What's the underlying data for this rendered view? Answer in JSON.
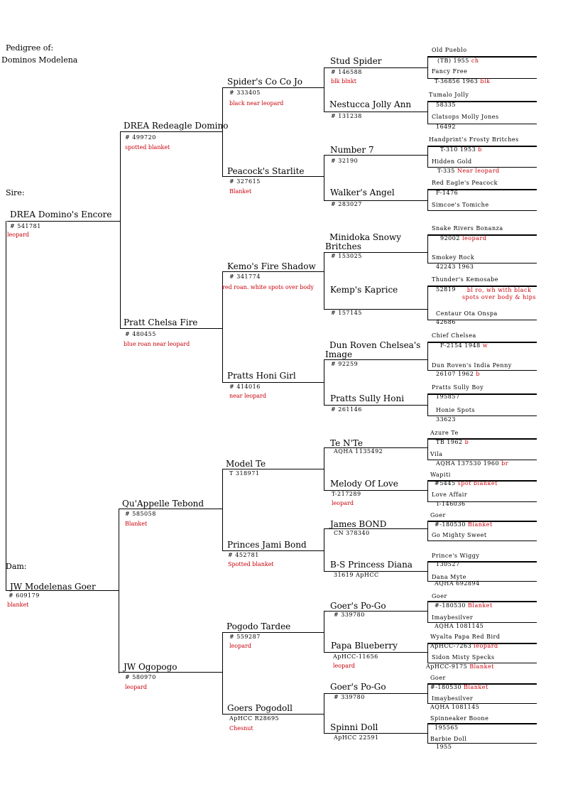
{
  "header": {
    "title_line1": "Pedigree of:",
    "title_line2": "Dominos Modelena"
  },
  "labels": {
    "sire": "Sire:",
    "dam": "Dam:"
  },
  "gen1": {
    "sire": {
      "name": "DREA Domino's Encore",
      "reg": "# 541781",
      "color": "leopard"
    },
    "dam": {
      "name": "JW Modelenas Goer",
      "reg": "# 609179",
      "color": "blanket"
    }
  },
  "gen2": [
    {
      "name": "DREA Redeagle Domino",
      "reg": "# 499720",
      "color": "spotted blanket"
    },
    {
      "name": "Pratt Chelsa Fire",
      "reg": "# 480455",
      "color": "blue roan near leopard"
    },
    {
      "name": "Qu'Appelle Tebond",
      "reg": "# 585058",
      "color": "Blanket"
    },
    {
      "name": "JW Ogopogo",
      "reg": "# 580970",
      "color": "leopard"
    }
  ],
  "gen3": [
    {
      "name": "Spider's Co Co Jo",
      "reg": "# 333405",
      "color": "black near leopard"
    },
    {
      "name": "Peacock's Starlite",
      "reg": "# 327615",
      "color": "Blanket"
    },
    {
      "name": "Kemo's Fire Shadow",
      "reg": "# 341774",
      "color": "red roan. white spots over body"
    },
    {
      "name": "Pratts Honi Girl",
      "reg": "# 414016",
      "color": "near leopard"
    },
    {
      "name": "Model Te",
      "reg": "T 318971",
      "color": ""
    },
    {
      "name": "Princes Jami Bond",
      "reg": "# 452781",
      "color": "Spotted blanket"
    },
    {
      "name": "Pogodo Tardee",
      "reg": "# 559287",
      "color": "leopard"
    },
    {
      "name": "Goers Pogodoll",
      "reg": "ApHCC R28695",
      "color": "Chesnut"
    }
  ],
  "gen4": [
    {
      "name": "Stud Spider",
      "reg": "# 146588",
      "color": "blk blnkt"
    },
    {
      "name": "Nestucca Jolly Ann",
      "reg": "# 131238",
      "color": ""
    },
    {
      "name": "Number 7",
      "reg": "# 32190",
      "color": ""
    },
    {
      "name": "Walker's Angel",
      "reg": "# 283027",
      "color": ""
    },
    {
      "name": "Minidoka Snowy Britches",
      "reg": "# 153025",
      "color": ""
    },
    {
      "name": "Kemp's Kaprice",
      "reg": "# 157145",
      "color": ""
    },
    {
      "name": "Dun Roven Chelsea's Image",
      "reg": "# 92259",
      "color": ""
    },
    {
      "name": "Pratts Sully Honi",
      "reg": "# 261146",
      "color": ""
    },
    {
      "name": "Te N'Te",
      "reg": "AQHA 1135492",
      "color": ""
    },
    {
      "name": "Melody Of Love",
      "reg": "T-217289",
      "color": "leopard"
    },
    {
      "name": "James BOND",
      "reg": "CN 378340",
      "color": ""
    },
    {
      "name": "B-S Princess Diana",
      "reg": "31619 ApHCC",
      "color": ""
    },
    {
      "name": "Goer's Po-Go",
      "reg": "# 339780",
      "color": ""
    },
    {
      "name": "Papa Blueberry",
      "reg": "ApHCC-11656",
      "color": "leopard"
    },
    {
      "name": "Goer's Po-Go",
      "reg": "# 339780",
      "color": ""
    },
    {
      "name": "Spinni Doll",
      "reg": "ApHCC 22591",
      "color": ""
    }
  ],
  "gen5": [
    {
      "name": "Old Pueblo",
      "reg": "(TB) 1955",
      "color": "ch"
    },
    {
      "name": "Fancy Free",
      "reg": "T-36856 1963",
      "color": "blk"
    },
    {
      "name": "Tumalo Jolly",
      "reg": "58335",
      "color": ""
    },
    {
      "name": "Clatsops Molly Jones",
      "reg": "16492",
      "color": ""
    },
    {
      "name": "Handprint's Frosty Britches",
      "reg": "T-310 1953",
      "color": "b"
    },
    {
      "name": "Hidden Gold",
      "reg": "T-335",
      "color": "Near leopard"
    },
    {
      "name": "Red Eagle's Peacock",
      "reg": "F-1476",
      "color": ""
    },
    {
      "name": "Simcoe's Tomiche",
      "reg": "",
      "color": ""
    },
    {
      "name": "Snake Rivers Bonanza",
      "reg": "92002",
      "color": "leopard"
    },
    {
      "name": "Smokey Rock",
      "reg": "42243 1963",
      "color": ""
    },
    {
      "name": "Thunder's Kemosabe",
      "reg": "52819",
      "color": "bl ro, wh with black spots over body & hips"
    },
    {
      "name": "Centaur Ota Onspa",
      "reg": "42686",
      "color": ""
    },
    {
      "name": "Chief Chelsea",
      "reg": "F-2154 1948",
      "color": "w"
    },
    {
      "name": "Dun Roven's India Penny",
      "reg": "26107 1962",
      "color": "b"
    },
    {
      "name": "Pratts Sully Boy",
      "reg": "195857",
      "color": ""
    },
    {
      "name": "Honie Spots",
      "reg": "33623",
      "color": ""
    },
    {
      "name": "Azure Te",
      "reg": "TB 1962",
      "color": "b"
    },
    {
      "name": "Vila",
      "reg": "AQHA 137530 1960",
      "color": "br"
    },
    {
      "name": "Wapiti",
      "reg": "#5445",
      "color": "spot blanket"
    },
    {
      "name": "Love Affair",
      "reg": "T-146036",
      "color": ""
    },
    {
      "name": "Goer",
      "reg": "#-180530",
      "color": "Blanket"
    },
    {
      "name": "Go Mighty Sweet",
      "reg": "",
      "color": ""
    },
    {
      "name": "Prince's Wiggy",
      "reg": "130527",
      "color": ""
    },
    {
      "name": "Dana Myte",
      "reg": "AQHA 692894",
      "color": ""
    },
    {
      "name": "Goer",
      "reg": "#-180530",
      "color": "Blanket"
    },
    {
      "name": "Imaybesilver",
      "reg": "AQHA 1081145",
      "color": ""
    },
    {
      "name": "Wyalta Papa Red Bird",
      "reg": "ApHCC-7263",
      "color": "leopard"
    },
    {
      "name": "Sidon Misty Specks",
      "reg": "ApHCC-9175",
      "color": "Blanket"
    },
    {
      "name": "Goer",
      "reg": "#-180530",
      "color": "Blanket"
    },
    {
      "name": "Imaybesilver",
      "reg": "AQHA 1081145",
      "color": ""
    },
    {
      "name": "Spinneaker Boone",
      "reg": "195565",
      "color": ""
    },
    {
      "name": "Barbie Doll",
      "reg": "1955",
      "color": ""
    }
  ]
}
